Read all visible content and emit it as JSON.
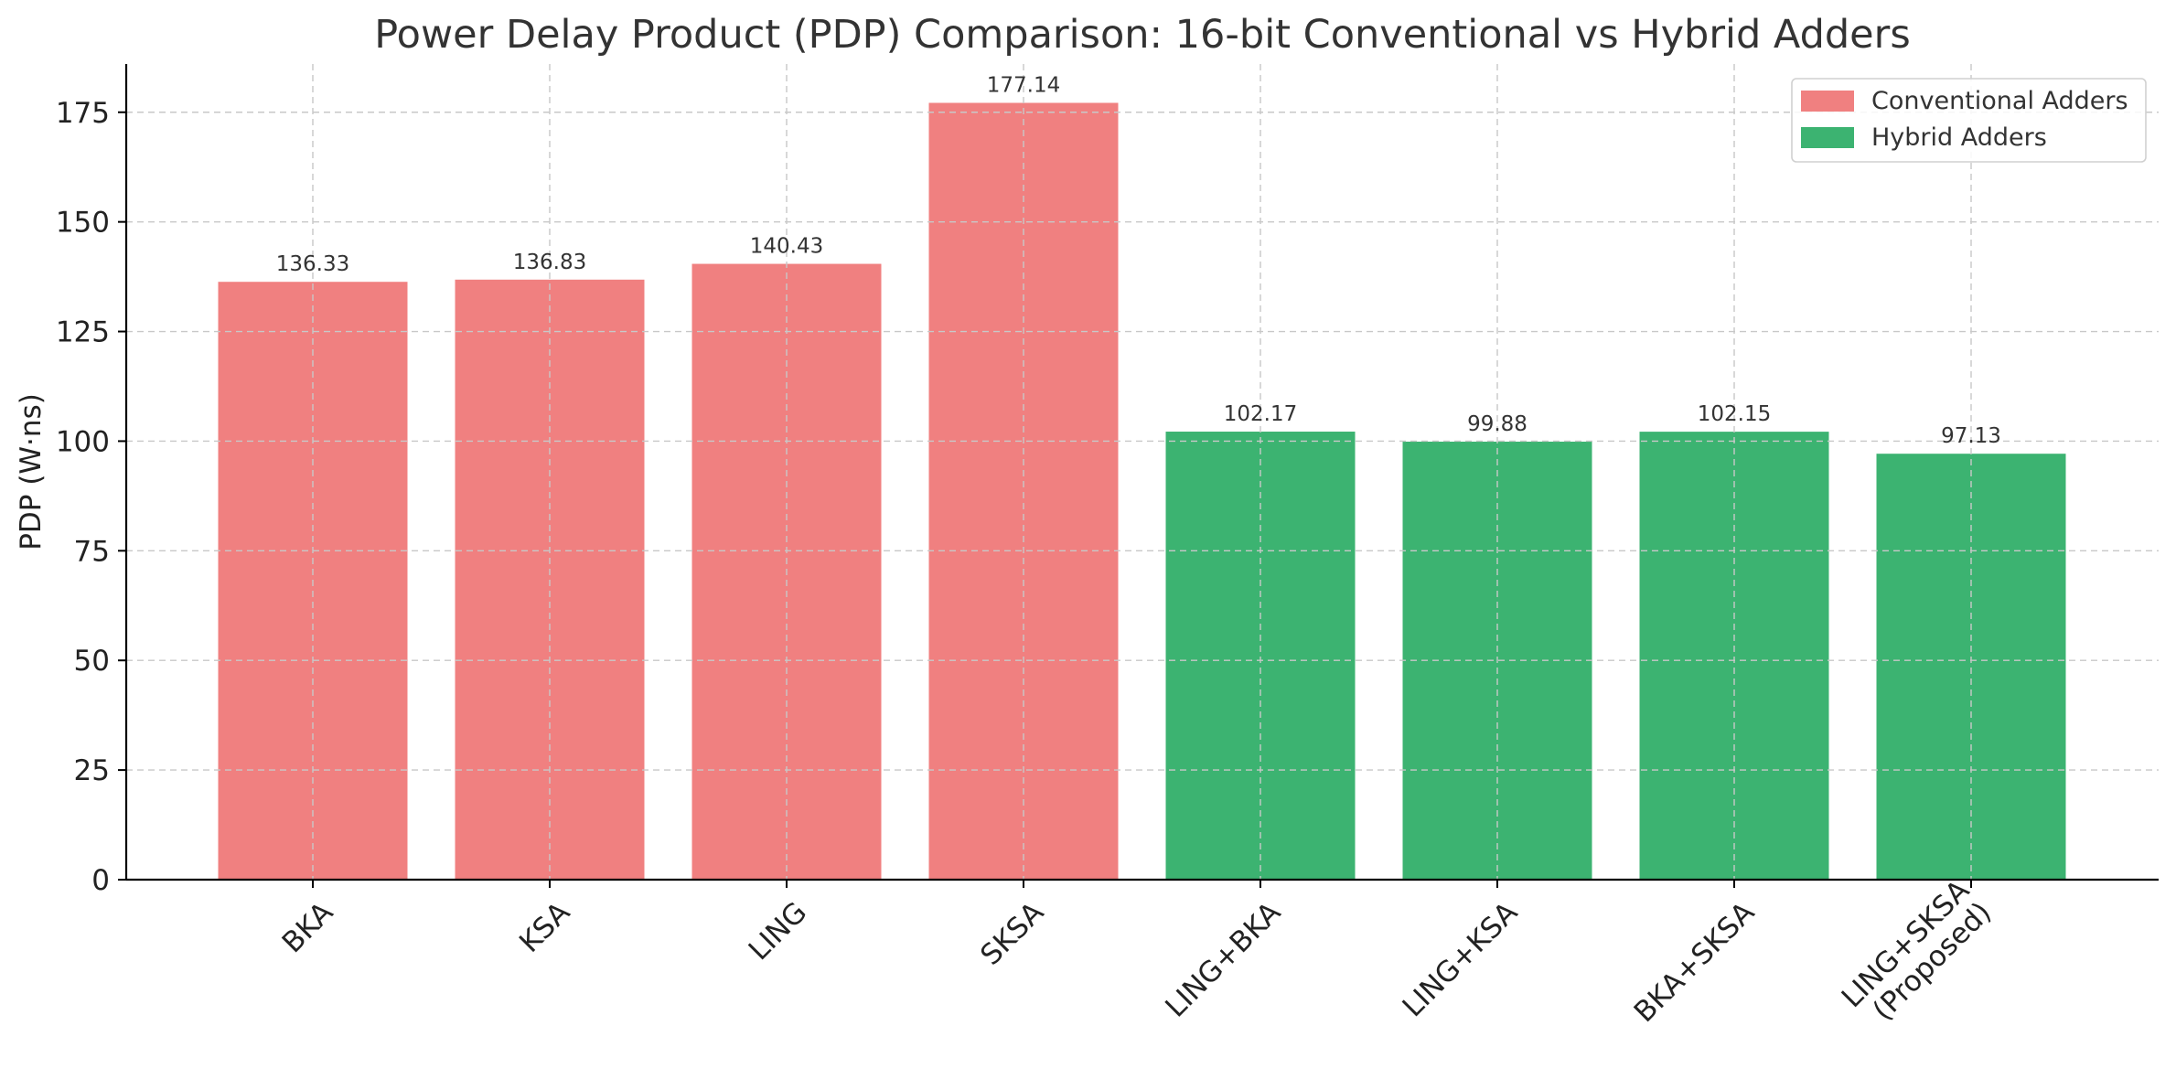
{
  "chart_data": {
    "type": "bar",
    "title": "Power Delay Product (PDP) Comparison: 16-bit Conventional vs Hybrid Adders",
    "xlabel": "",
    "ylabel": "PDP (W·ns)",
    "ylim": [
      0,
      186
    ],
    "yticks": [
      0,
      25,
      50,
      75,
      100,
      125,
      150,
      175
    ],
    "grid": true,
    "legend_position": "top-right",
    "categories": [
      [
        "BKA"
      ],
      [
        "KSA"
      ],
      [
        "LING"
      ],
      [
        "SKSA"
      ],
      [
        "LING+BKA"
      ],
      [
        "LING+KSA"
      ],
      [
        "BKA+SKSA"
      ],
      [
        "LING+SKSA",
        "(Proposed)"
      ]
    ],
    "values": [
      136.33,
      136.83,
      140.43,
      177.14,
      102.17,
      99.88,
      102.15,
      97.13
    ],
    "value_labels": [
      "136.33",
      "136.83",
      "140.43",
      "177.14",
      "102.17",
      "99.88",
      "102.15",
      "97.13"
    ],
    "bar_group": [
      0,
      0,
      0,
      0,
      1,
      1,
      1,
      1
    ],
    "series": [
      {
        "name": "Conventional Adders",
        "color": "#f08080"
      },
      {
        "name": "Hybrid Adders",
        "color": "#3cb371"
      }
    ]
  }
}
